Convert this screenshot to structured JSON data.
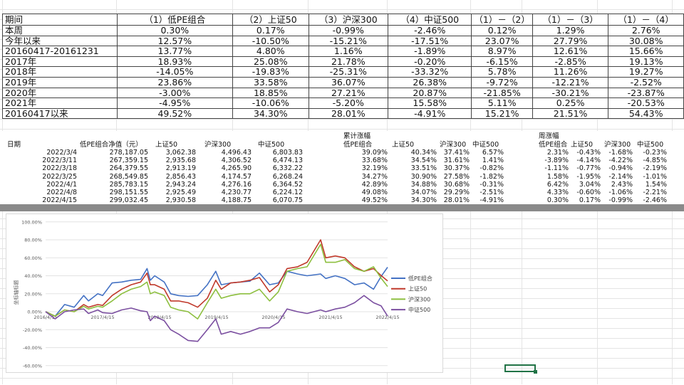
{
  "summary_table": {
    "headers": [
      "期间",
      "（1）低PE组合",
      "（2）上证50",
      "（3）沪深300",
      "（4）中证500",
      "（1）－（2）",
      "（1）－（3）",
      "（1）－（4）"
    ],
    "rows": [
      [
        "本周",
        "0.30%",
        "0.17%",
        "-0.99%",
        "-2.46%",
        "0.12%",
        "1.29%",
        "2.76%"
      ],
      [
        "今年以来",
        "12.57%",
        "-10.50%",
        "-15.21%",
        "-17.51%",
        "23.07%",
        "27.79%",
        "30.08%"
      ],
      [
        "20160417-20161231",
        "13.77%",
        "4.80%",
        "1.16%",
        "-1.89%",
        "8.97%",
        "12.61%",
        "15.66%"
      ],
      [
        "2017年",
        "18.93%",
        "25.08%",
        "21.78%",
        "-0.20%",
        "-6.15%",
        "-2.85%",
        "19.13%"
      ],
      [
        "2018年",
        "-14.05%",
        "-19.83%",
        "-25.31%",
        "-33.32%",
        "5.78%",
        "11.26%",
        "19.27%"
      ],
      [
        "2019年",
        "23.86%",
        "33.58%",
        "36.07%",
        "26.38%",
        "-9.72%",
        "-12.21%",
        "-2.52%"
      ],
      [
        "2020年",
        "-3.00%",
        "18.85%",
        "27.21%",
        "20.87%",
        "-21.85%",
        "-30.21%",
        "-23.87%"
      ],
      [
        "2021年",
        "-4.95%",
        "-10.06%",
        "-5.20%",
        "15.58%",
        "5.11%",
        "0.25%",
        "-20.53%"
      ],
      [
        "20160417以来",
        "49.52%",
        "34.30%",
        "28.01%",
        "-4.91%",
        "15.21%",
        "21.51%",
        "54.43%"
      ]
    ]
  },
  "detail_table": {
    "group_labels": {
      "cumulative": "累计涨幅",
      "weekly": "周涨幅"
    },
    "headers": [
      "日期",
      "低PE组合净值（元）",
      "上证50",
      "沪深300",
      "中证500",
      "低PE组合",
      "上证50",
      "沪深300",
      "中证500",
      "低PE组合",
      "上证50",
      "沪深300",
      "中证500"
    ],
    "rows": [
      [
        "2022/3/4",
        "278,187.05",
        "3,062.38",
        "4,496.43",
        "6,803.83",
        "39.09%",
        "40.34%",
        "37.41%",
        "6.57%",
        "2.31%",
        "-0.43%",
        "-1.68%",
        "-0.23%"
      ],
      [
        "2022/3/11",
        "267,359.15",
        "2,935.68",
        "4,306.52",
        "6,474.13",
        "33.68%",
        "34.54%",
        "31.61%",
        "1.41%",
        "-3.89%",
        "-4.14%",
        "-4.22%",
        "-4.85%"
      ],
      [
        "2022/3/18",
        "264,379.55",
        "2,913.19",
        "4,265.90",
        "6,332.22",
        "32.19%",
        "33.51%",
        "30.37%",
        "-0.82%",
        "-1.11%",
        "-0.77%",
        "-0.94%",
        "-2.19%"
      ],
      [
        "2022/3/25",
        "268,549.85",
        "2,856.43",
        "4,174.57",
        "6,268.24",
        "34.27%",
        "30.90%",
        "27.58%",
        "-1.82%",
        "1.58%",
        "-1.95%",
        "-2.14%",
        "-1.01%"
      ],
      [
        "2022/4/1",
        "285,783.15",
        "2,943.24",
        "4,276.16",
        "6,364.52",
        "42.89%",
        "34.88%",
        "30.68%",
        "-0.31%",
        "6.42%",
        "3.04%",
        "2.43%",
        "1.54%"
      ],
      [
        "2022/4/8",
        "298,151.55",
        "2,925.49",
        "4,230.77",
        "6,224.12",
        "49.08%",
        "34.07%",
        "29.29%",
        "-2.51%",
        "4.33%",
        "-0.60%",
        "-1.06%",
        "-2.21%"
      ],
      [
        "2022/4/15",
        "299,032.45",
        "2,930.58",
        "4,188.75",
        "6,070.75",
        "49.52%",
        "34.30%",
        "28.01%",
        "-4.91%",
        "0.30%",
        "0.17%",
        "-0.99%",
        "-2.46%"
      ]
    ]
  },
  "chart_data": {
    "type": "line",
    "ylabel": "坐标轴标题",
    "ylim": [
      -60,
      100
    ],
    "yticks": [
      "100.00%",
      "80.00%",
      "60.00%",
      "40.00%",
      "20.00%",
      "0.00%",
      "-20.00%",
      "-40.00%",
      "-60.00%"
    ],
    "xticks": [
      "2016/4/15",
      "2017/4/15",
      "2018/4/15",
      "2019/4/15",
      "2020/4/15",
      "2021/4/15",
      "2022/4/15"
    ],
    "xlim": [
      "2016-04-15",
      "2022-04-15"
    ],
    "grid": true,
    "legend": "right",
    "x": [
      "2016-04-15",
      "2016-06-15",
      "2016-08-15",
      "2016-10-15",
      "2016-12-15",
      "2017-01-15",
      "2017-03-15",
      "2017-04-15",
      "2017-06-15",
      "2017-08-15",
      "2017-10-15",
      "2017-12-15",
      "2018-01-25",
      "2018-02-15",
      "2018-03-15",
      "2018-05-15",
      "2018-06-25",
      "2018-08-15",
      "2018-10-15",
      "2018-12-15",
      "2019-02-15",
      "2019-04-10",
      "2019-05-15",
      "2019-07-15",
      "2019-09-15",
      "2019-11-15",
      "2020-01-15",
      "2020-03-20",
      "2020-05-15",
      "2020-07-10",
      "2020-09-15",
      "2020-11-15",
      "2021-02-10",
      "2021-03-15",
      "2021-05-15",
      "2021-07-15",
      "2021-09-15",
      "2021-11-15",
      "2022-01-15",
      "2022-03-04",
      "2022-04-15"
    ],
    "series": [
      {
        "name": "低PE组合",
        "color": "#4472c4",
        "values": [
          0,
          -5,
          8,
          5,
          18,
          12,
          20,
          18,
          32,
          33,
          35,
          36,
          48,
          35,
          40,
          33,
          20,
          18,
          17,
          18,
          30,
          45,
          30,
          32,
          33,
          34,
          43,
          30,
          32,
          45,
          42,
          40,
          42,
          37,
          40,
          37,
          30,
          32,
          25,
          39.09,
          49.52
        ]
      },
      {
        "name": "上证50",
        "color": "#c0392b",
        "values": [
          0,
          -5,
          2,
          0,
          8,
          5,
          8,
          7,
          18,
          25,
          30,
          33,
          43,
          30,
          30,
          25,
          12,
          12,
          10,
          5,
          15,
          35,
          25,
          32,
          33,
          35,
          38,
          22,
          30,
          48,
          50,
          55,
          80,
          60,
          62,
          60,
          50,
          45,
          48,
          40.34,
          34.3
        ]
      },
      {
        "name": "沪深300",
        "color": "#8dbf3f",
        "values": [
          0,
          -5,
          2,
          0,
          6,
          3,
          6,
          5,
          12,
          20,
          25,
          28,
          33,
          20,
          22,
          18,
          5,
          2,
          0,
          -8,
          10,
          25,
          15,
          18,
          20,
          20,
          25,
          12,
          22,
          45,
          48,
          50,
          75,
          55,
          55,
          58,
          48,
          45,
          50,
          37.41,
          28.01
        ]
      },
      {
        "name": "中证500",
        "color": "#7b4fa0",
        "values": [
          0,
          -8,
          0,
          2,
          3,
          -2,
          2,
          -1,
          -2,
          2,
          4,
          1,
          0,
          -10,
          -5,
          -10,
          -20,
          -25,
          -32,
          -33,
          -20,
          -8,
          -25,
          -22,
          -25,
          -22,
          -18,
          -18,
          -12,
          3,
          0,
          -2,
          2,
          0,
          3,
          5,
          10,
          18,
          10,
          6.57,
          -4.91
        ]
      }
    ]
  }
}
